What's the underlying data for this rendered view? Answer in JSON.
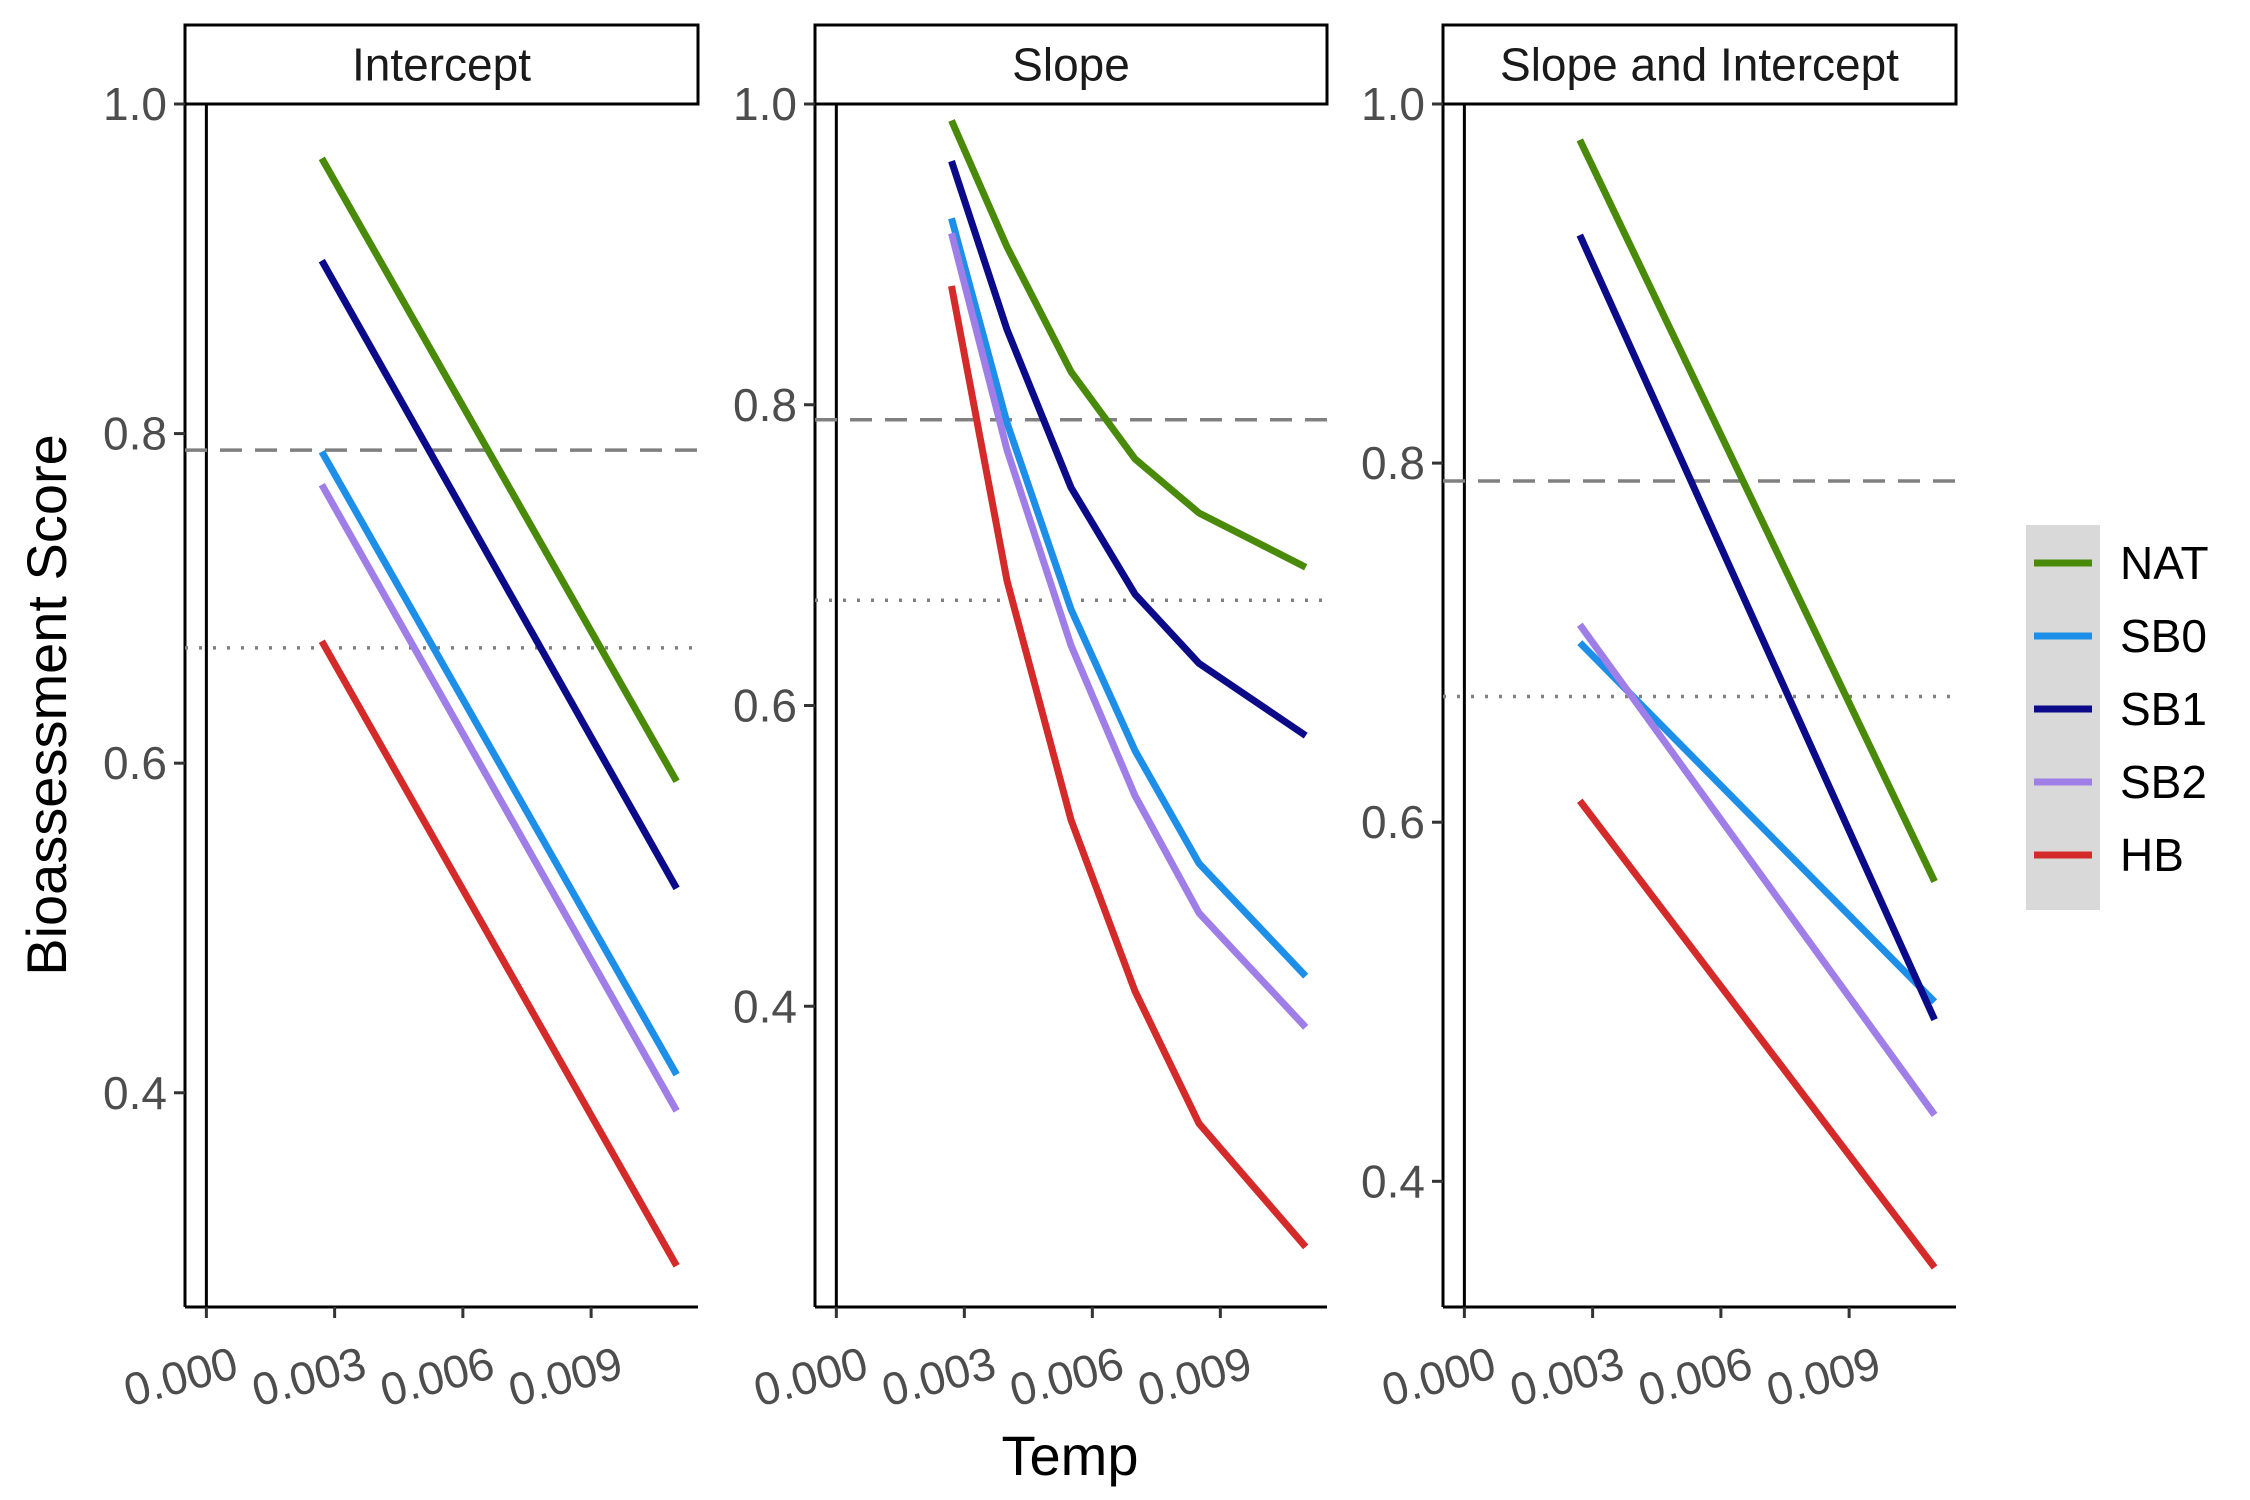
{
  "chart_data": {
    "type": "line",
    "xlabel": "Temp",
    "ylabel": "Bioassessment Score",
    "x_ticks": [
      "0.000",
      "0.003",
      "0.006",
      "0.009"
    ],
    "reference_lines": [
      {
        "style": "dashed",
        "y": 0.79
      },
      {
        "style": "dotted",
        "y": 0.67
      }
    ],
    "legend_position": "right",
    "legend": [
      {
        "name": "NAT",
        "color": "#4a8a0b"
      },
      {
        "name": "SB0",
        "color": "#1e8fe8"
      },
      {
        "name": "SB1",
        "color": "#0b0b8a"
      },
      {
        "name": "SB2",
        "color": "#a07ee8"
      },
      {
        "name": "HB",
        "color": "#d42a2a"
      }
    ],
    "panels": [
      {
        "title": "Intercept",
        "xlim": [
          -0.0005,
          0.0115
        ],
        "ylim": [
          0.27,
          1.0
        ],
        "y_ticks": [
          "0.4",
          "0.6",
          "0.8",
          "1.0"
        ],
        "series": [
          {
            "name": "NAT",
            "x": [
              0.0027,
              0.011
            ],
            "y": [
              0.967,
              0.589
            ]
          },
          {
            "name": "SB0",
            "x": [
              0.0027,
              0.011
            ],
            "y": [
              0.789,
              0.411
            ]
          },
          {
            "name": "SB1",
            "x": [
              0.0027,
              0.011
            ],
            "y": [
              0.905,
              0.524
            ]
          },
          {
            "name": "SB2",
            "x": [
              0.0027,
              0.011
            ],
            "y": [
              0.769,
              0.389
            ]
          },
          {
            "name": "HB",
            "x": [
              0.0027,
              0.011
            ],
            "y": [
              0.674,
              0.295
            ]
          }
        ]
      },
      {
        "title": "Slope",
        "xlim": [
          -0.0005,
          0.0115
        ],
        "ylim": [
          0.2,
          1.0
        ],
        "y_ticks": [
          "0.4",
          "0.6",
          "0.8",
          "1.0"
        ],
        "series": [
          {
            "name": "NAT",
            "x": [
              0.0027,
              0.004,
              0.0055,
              0.007,
              0.0085,
              0.011
            ],
            "y": [
              0.989,
              0.905,
              0.822,
              0.764,
              0.728,
              0.692
            ]
          },
          {
            "name": "SB0",
            "x": [
              0.0027,
              0.004,
              0.0055,
              0.007,
              0.0085,
              0.011
            ],
            "y": [
              0.924,
              0.788,
              0.664,
              0.57,
              0.495,
              0.42
            ]
          },
          {
            "name": "SB1",
            "x": [
              0.0027,
              0.004,
              0.0055,
              0.007,
              0.0085,
              0.011
            ],
            "y": [
              0.962,
              0.85,
              0.745,
              0.674,
              0.628,
              0.58
            ]
          },
          {
            "name": "SB2",
            "x": [
              0.0027,
              0.004,
              0.0055,
              0.007,
              0.0085,
              0.011
            ],
            "y": [
              0.914,
              0.77,
              0.64,
              0.54,
              0.462,
              0.386
            ]
          },
          {
            "name": "HB",
            "x": [
              0.0027,
              0.004,
              0.0055,
              0.007,
              0.0085,
              0.011
            ],
            "y": [
              0.879,
              0.683,
              0.524,
              0.41,
              0.322,
              0.24
            ]
          }
        ]
      },
      {
        "title": "Slope and Intercept",
        "xlim": [
          -0.0005,
          0.0115
        ],
        "ylim": [
          0.33,
          1.0
        ],
        "y_ticks": [
          "0.4",
          "0.6",
          "0.8",
          "1.0"
        ],
        "series": [
          {
            "name": "NAT",
            "x": [
              0.0027,
              0.011
            ],
            "y": [
              0.98,
              0.567
            ]
          },
          {
            "name": "SB0",
            "x": [
              0.0027,
              0.011
            ],
            "y": [
              0.7,
              0.5
            ]
          },
          {
            "name": "SB1",
            "x": [
              0.0027,
              0.011
            ],
            "y": [
              0.927,
              0.49
            ]
          },
          {
            "name": "SB2",
            "x": [
              0.0027,
              0.011
            ],
            "y": [
              0.71,
              0.437
            ]
          },
          {
            "name": "HB",
            "x": [
              0.0027,
              0.011
            ],
            "y": [
              0.612,
              0.352
            ]
          }
        ]
      }
    ]
  }
}
